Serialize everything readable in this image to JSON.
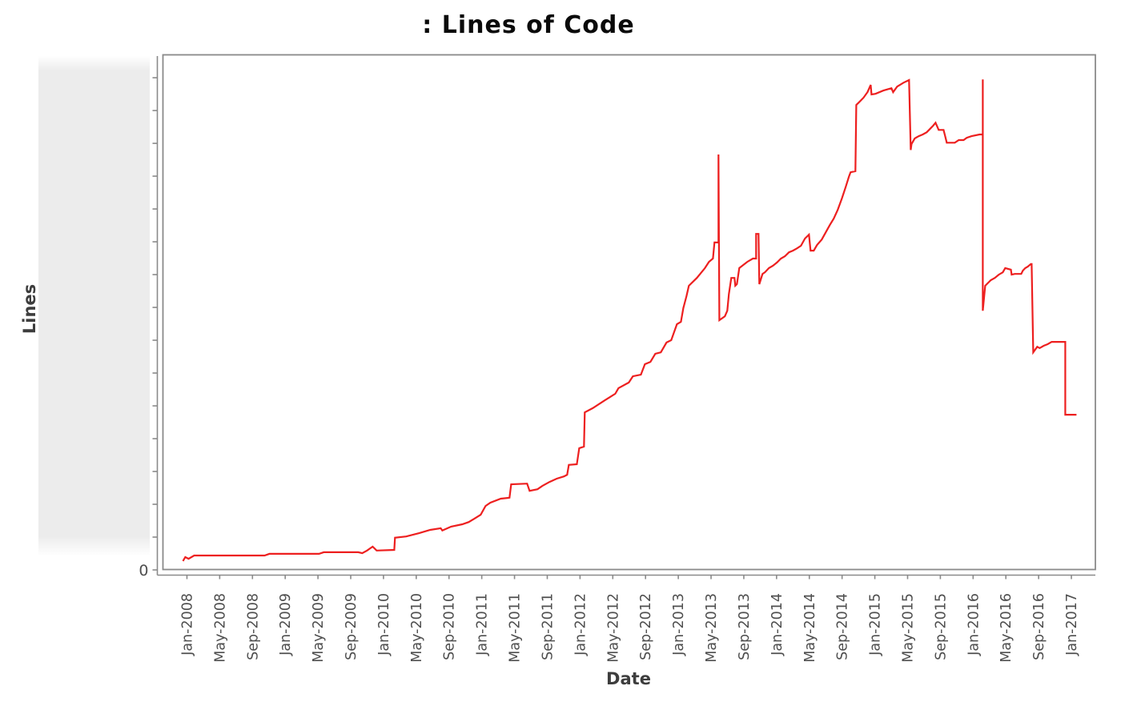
{
  "page": {
    "background": "#ffffff"
  },
  "header": {
    "title": ": Lines of Code"
  },
  "axes": {
    "x_title": "Date",
    "y_title": "Lines",
    "y_zero_label": "0"
  },
  "colors": {
    "line": "#ed1f1f",
    "axis": "#8a8a8a",
    "tick_label": "#4f4f4f",
    "axis_title": "#3d3d3d",
    "title": "#0a0a0a",
    "panel": "#ececec"
  },
  "chart_data": {
    "type": "line",
    "title": ": Lines of Code",
    "xlabel": "Date",
    "ylabel": "Lines",
    "legend": "none",
    "grid": false,
    "x_tick_labels": [
      "Jan-2008",
      "May-2008",
      "Sep-2008",
      "Jan-2009",
      "May-2009",
      "Sep-2009",
      "Jan-2010",
      "May-2010",
      "Sep-2010",
      "Jan-2011",
      "May-2011",
      "Sep-2011",
      "Jan-2012",
      "May-2012",
      "Sep-2012",
      "Jan-2013",
      "May-2013",
      "Sep-2013",
      "Jan-2014",
      "May-2014",
      "Sep-2014",
      "Jan-2015",
      "May-2015",
      "Sep-2015",
      "Jan-2016",
      "May-2016",
      "Sep-2016",
      "Jan-2017"
    ],
    "x_tick_interval_months": 4,
    "x_unit": "months since Jan-2008",
    "y_unit": "lines of code (y axis unlabeled except 0; values in tick-step units, 1.0 = one unlabeled y tick)",
    "y_tick_count": 16,
    "y_tick_labels_shown": [
      "0"
    ],
    "xlim": [
      -2.93,
      110.93
    ],
    "ylim": [
      0,
      15.71
    ],
    "series": [
      {
        "name": "Lines of Code",
        "color": "#ed1f1f",
        "points": [
          [
            -0.49,
            0.27
          ],
          [
            -0.2,
            0.39
          ],
          [
            0.2,
            0.34
          ],
          [
            0.88,
            0.44
          ],
          [
            9.48,
            0.44
          ],
          [
            10.07,
            0.49
          ],
          [
            16.13,
            0.49
          ],
          [
            16.71,
            0.54
          ],
          [
            20.92,
            0.54
          ],
          [
            21.41,
            0.51
          ],
          [
            21.99,
            0.59
          ],
          [
            22.68,
            0.71
          ],
          [
            23.17,
            0.59
          ],
          [
            25.32,
            0.61
          ],
          [
            25.41,
            0.98
          ],
          [
            26.78,
            1.02
          ],
          [
            28.35,
            1.12
          ],
          [
            29.71,
            1.22
          ],
          [
            30.99,
            1.27
          ],
          [
            31.18,
            1.2
          ],
          [
            32.26,
            1.32
          ],
          [
            33.62,
            1.39
          ],
          [
            34.41,
            1.46
          ],
          [
            35.09,
            1.56
          ],
          [
            35.87,
            1.68
          ],
          [
            36.46,
            1.95
          ],
          [
            37.05,
            2.05
          ],
          [
            38.32,
            2.17
          ],
          [
            39.39,
            2.2
          ],
          [
            39.59,
            2.61
          ],
          [
            41.54,
            2.63
          ],
          [
            41.84,
            2.41
          ],
          [
            42.81,
            2.46
          ],
          [
            43.4,
            2.56
          ],
          [
            44.28,
            2.68
          ],
          [
            45.16,
            2.78
          ],
          [
            46.04,
            2.85
          ],
          [
            46.43,
            2.9
          ],
          [
            46.63,
            3.2
          ],
          [
            47.61,
            3.22
          ],
          [
            47.9,
            3.71
          ],
          [
            48.48,
            3.76
          ],
          [
            48.58,
            4.8
          ],
          [
            49.56,
            4.93
          ],
          [
            51.03,
            5.17
          ],
          [
            52.3,
            5.37
          ],
          [
            52.69,
            5.54
          ],
          [
            53.96,
            5.71
          ],
          [
            54.45,
            5.9
          ],
          [
            55.43,
            5.95
          ],
          [
            55.92,
            6.27
          ],
          [
            56.6,
            6.34
          ],
          [
            57.19,
            6.59
          ],
          [
            57.87,
            6.63
          ],
          [
            58.56,
            6.93
          ],
          [
            59.14,
            7.0
          ],
          [
            59.83,
            7.49
          ],
          [
            60.32,
            7.56
          ],
          [
            60.61,
            7.98
          ],
          [
            61.0,
            8.34
          ],
          [
            61.29,
            8.66
          ],
          [
            62.27,
            8.9
          ],
          [
            63.25,
            9.2
          ],
          [
            63.74,
            9.39
          ],
          [
            64.23,
            9.49
          ],
          [
            64.42,
            9.98
          ],
          [
            64.91,
            9.98
          ],
          [
            64.91,
            12.66
          ],
          [
            65.01,
            7.61
          ],
          [
            65.69,
            7.73
          ],
          [
            65.98,
            7.9
          ],
          [
            66.18,
            8.41
          ],
          [
            66.47,
            8.9
          ],
          [
            66.86,
            8.9
          ],
          [
            66.96,
            8.66
          ],
          [
            67.16,
            8.71
          ],
          [
            67.45,
            9.2
          ],
          [
            68.43,
            9.39
          ],
          [
            69.11,
            9.49
          ],
          [
            69.5,
            9.49
          ],
          [
            69.5,
            10.24
          ],
          [
            69.8,
            10.24
          ],
          [
            69.89,
            8.71
          ],
          [
            70.28,
            9.02
          ],
          [
            70.58,
            9.07
          ],
          [
            71.07,
            9.2
          ],
          [
            71.56,
            9.27
          ],
          [
            72.05,
            9.37
          ],
          [
            72.53,
            9.49
          ],
          [
            73.02,
            9.56
          ],
          [
            73.51,
            9.68
          ],
          [
            74.0,
            9.73
          ],
          [
            74.49,
            9.8
          ],
          [
            74.98,
            9.88
          ],
          [
            75.47,
            10.1
          ],
          [
            75.96,
            10.22
          ],
          [
            76.15,
            9.73
          ],
          [
            76.54,
            9.73
          ],
          [
            76.93,
            9.9
          ],
          [
            77.52,
            10.07
          ],
          [
            78.01,
            10.29
          ],
          [
            78.5,
            10.51
          ],
          [
            78.99,
            10.71
          ],
          [
            79.48,
            10.98
          ],
          [
            79.97,
            11.32
          ],
          [
            80.45,
            11.68
          ],
          [
            80.85,
            12.0
          ],
          [
            81.04,
            12.12
          ],
          [
            81.63,
            12.15
          ],
          [
            81.73,
            14.17
          ],
          [
            82.02,
            14.24
          ],
          [
            82.61,
            14.39
          ],
          [
            83.1,
            14.56
          ],
          [
            83.49,
            14.78
          ],
          [
            83.59,
            14.49
          ],
          [
            84.08,
            14.51
          ],
          [
            85.05,
            14.61
          ],
          [
            86.03,
            14.68
          ],
          [
            86.23,
            14.56
          ],
          [
            86.72,
            14.73
          ],
          [
            87.5,
            14.85
          ],
          [
            88.18,
            14.93
          ],
          [
            88.38,
            12.8
          ],
          [
            88.48,
            12.98
          ],
          [
            88.87,
            13.15
          ],
          [
            89.36,
            13.22
          ],
          [
            89.85,
            13.27
          ],
          [
            90.34,
            13.34
          ],
          [
            91.12,
            13.54
          ],
          [
            91.41,
            13.63
          ],
          [
            91.8,
            13.41
          ],
          [
            92.39,
            13.41
          ],
          [
            92.59,
            13.22
          ],
          [
            92.78,
            13.02
          ],
          [
            93.76,
            13.02
          ],
          [
            94.25,
            13.1
          ],
          [
            94.84,
            13.1
          ],
          [
            95.23,
            13.17
          ],
          [
            95.81,
            13.22
          ],
          [
            96.79,
            13.27
          ],
          [
            97.18,
            13.27
          ],
          [
            97.18,
            14.95
          ],
          [
            97.18,
            7.9
          ],
          [
            97.48,
            8.66
          ],
          [
            97.67,
            8.71
          ],
          [
            98.16,
            8.83
          ],
          [
            98.65,
            8.9
          ],
          [
            99.14,
            9.0
          ],
          [
            99.63,
            9.07
          ],
          [
            99.92,
            9.2
          ],
          [
            100.61,
            9.15
          ],
          [
            100.7,
            9.0
          ],
          [
            101.09,
            9.02
          ],
          [
            101.88,
            9.02
          ],
          [
            102.07,
            9.12
          ],
          [
            102.37,
            9.2
          ],
          [
            102.66,
            9.24
          ],
          [
            103.05,
            9.32
          ],
          [
            103.15,
            9.32
          ],
          [
            103.34,
            6.63
          ],
          [
            103.83,
            6.8
          ],
          [
            104.12,
            6.76
          ],
          [
            104.61,
            6.83
          ],
          [
            105.1,
            6.88
          ],
          [
            105.59,
            6.95
          ],
          [
            107.25,
            6.95
          ],
          [
            107.25,
            4.73
          ],
          [
            108.62,
            4.73
          ]
        ]
      }
    ]
  }
}
